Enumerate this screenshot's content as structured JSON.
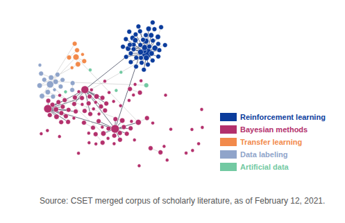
{
  "chart_data": {
    "type": "graph",
    "legend": "right",
    "caption": "Source: CSET merged corpus of scholarly literature, as of February 12, 2021.",
    "series": [
      {
        "name": "Reinforcement learning",
        "color": "#0b3c9c",
        "nodes": 45,
        "links": [
          [
            0,
            1
          ],
          [
            0,
            2
          ],
          [
            0,
            3
          ],
          [
            0,
            4
          ],
          [
            0,
            5
          ],
          [
            0,
            6
          ],
          [
            0,
            7
          ],
          [
            0,
            8
          ],
          [
            0,
            9
          ],
          [
            0,
            10
          ],
          [
            0,
            11
          ],
          [
            0,
            12
          ],
          [
            0,
            13
          ],
          [
            0,
            14
          ],
          [
            0,
            15
          ],
          [
            0,
            16
          ],
          [
            0,
            17
          ],
          [
            0,
            18
          ],
          [
            0,
            19
          ],
          [
            0,
            20
          ],
          [
            0,
            21
          ],
          [
            0,
            22
          ],
          [
            0,
            23
          ],
          [
            0,
            24
          ],
          [
            0,
            25
          ],
          [
            0,
            26
          ],
          [
            0,
            27
          ],
          [
            0,
            28
          ],
          [
            0,
            29
          ],
          [
            0,
            30
          ],
          [
            0,
            31
          ],
          [
            0,
            32
          ],
          [
            0,
            33
          ],
          [
            0,
            34
          ],
          [
            1,
            35
          ],
          [
            2,
            36
          ],
          [
            3,
            37
          ],
          [
            5,
            38
          ],
          [
            7,
            39
          ],
          [
            10,
            40
          ],
          [
            12,
            41
          ],
          [
            15,
            42
          ],
          [
            20,
            43
          ],
          [
            25,
            44
          ],
          [
            1,
            2
          ],
          [
            3,
            4
          ],
          [
            6,
            8
          ]
        ]
      },
      {
        "name": "Bayesian methods",
        "color": "#b3306c",
        "nodes": 90,
        "links": [
          [
            0,
            3
          ],
          [
            0,
            4
          ],
          [
            0,
            5
          ],
          [
            0,
            6
          ],
          [
            0,
            7
          ],
          [
            0,
            8
          ],
          [
            0,
            9
          ],
          [
            0,
            10
          ],
          [
            0,
            11
          ],
          [
            0,
            12
          ],
          [
            0,
            13
          ],
          [
            0,
            14
          ],
          [
            1,
            15
          ],
          [
            1,
            16
          ],
          [
            1,
            17
          ],
          [
            1,
            18
          ],
          [
            1,
            19
          ],
          [
            1,
            20
          ],
          [
            1,
            21
          ],
          [
            1,
            22
          ],
          [
            1,
            23
          ],
          [
            1,
            24
          ],
          [
            1,
            25
          ],
          [
            1,
            26
          ],
          [
            2,
            27
          ],
          [
            2,
            28
          ],
          [
            2,
            29
          ],
          [
            2,
            30
          ],
          [
            2,
            31
          ],
          [
            2,
            32
          ],
          [
            2,
            33
          ],
          [
            2,
            34
          ],
          [
            0,
            1
          ],
          [
            0,
            2
          ],
          [
            1,
            2
          ],
          [
            35,
            36
          ],
          [
            37,
            38
          ],
          [
            39,
            40
          ],
          [
            41,
            42
          ],
          [
            43,
            44
          ],
          [
            45,
            46
          ],
          [
            3,
            50
          ],
          [
            16,
            55
          ],
          [
            28,
            60
          ]
        ]
      },
      {
        "name": "Transfer learning",
        "color": "#f28a4b",
        "nodes": 8,
        "links": [
          [
            0,
            1
          ],
          [
            0,
            2
          ],
          [
            3,
            4
          ]
        ]
      },
      {
        "name": "Data labeling",
        "color": "#8fa4ca",
        "nodes": 16,
        "links": [
          [
            0,
            1
          ],
          [
            0,
            2
          ],
          [
            0,
            3
          ],
          [
            0,
            4
          ],
          [
            0,
            5
          ],
          [
            0,
            6
          ],
          [
            7,
            8
          ],
          [
            9,
            10
          ],
          [
            10,
            11
          ],
          [
            12,
            13
          ]
        ]
      },
      {
        "name": "Artificial data",
        "color": "#72c9a2",
        "nodes": 5,
        "links": []
      }
    ],
    "cross_links": [
      [
        2,
        0,
        3,
        0
      ],
      [
        2,
        1,
        3,
        2
      ],
      [
        3,
        0,
        1,
        5
      ],
      [
        2,
        0,
        1,
        3
      ],
      [
        4,
        1,
        3,
        4
      ],
      [
        0,
        5,
        1,
        2
      ],
      [
        0,
        10,
        1,
        0
      ],
      [
        3,
        3,
        1,
        8
      ],
      [
        1,
        20,
        0,
        12
      ],
      [
        2,
        5,
        3,
        7
      ]
    ]
  }
}
